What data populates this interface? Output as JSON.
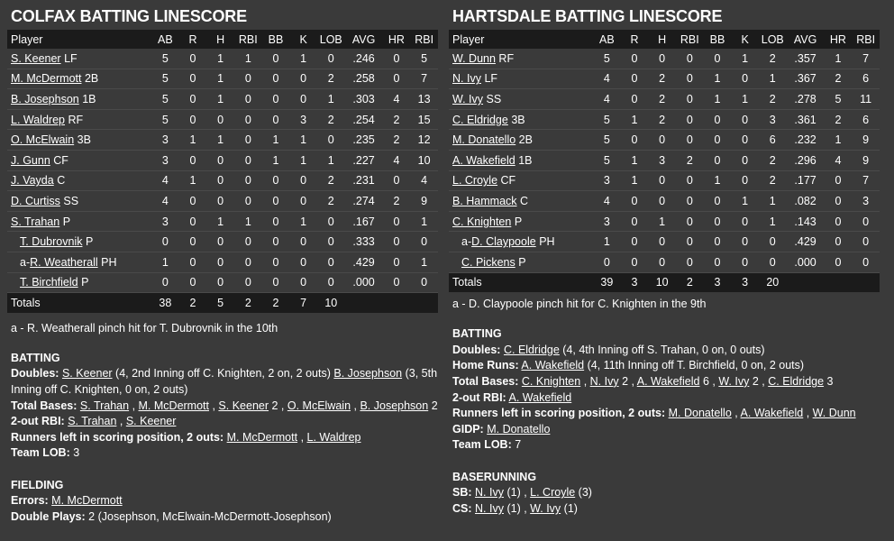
{
  "columns": [
    "Player",
    "AB",
    "R",
    "H",
    "RBI",
    "BB",
    "K",
    "LOB",
    "AVG",
    "HR",
    "RBI"
  ],
  "colfax": {
    "title": "COLFAX BATTING LINESCORE",
    "rows": [
      {
        "name": "S. Keener",
        "pos": "LF",
        "sub": "",
        "stats": [
          "5",
          "0",
          "1",
          "1",
          "0",
          "1",
          "0",
          ".246",
          "0",
          "5"
        ]
      },
      {
        "name": "M. McDermott",
        "pos": "2B",
        "sub": "",
        "stats": [
          "5",
          "0",
          "1",
          "0",
          "0",
          "0",
          "2",
          ".258",
          "0",
          "7"
        ]
      },
      {
        "name": "B. Josephson",
        "pos": "1B",
        "sub": "",
        "stats": [
          "5",
          "0",
          "1",
          "0",
          "0",
          "0",
          "1",
          ".303",
          "4",
          "13"
        ]
      },
      {
        "name": "L. Waldrep",
        "pos": "RF",
        "sub": "",
        "stats": [
          "5",
          "0",
          "0",
          "0",
          "0",
          "3",
          "2",
          ".254",
          "2",
          "15"
        ]
      },
      {
        "name": "O. McElwain",
        "pos": "3B",
        "sub": "",
        "stats": [
          "3",
          "1",
          "1",
          "0",
          "1",
          "1",
          "0",
          ".235",
          "2",
          "12"
        ]
      },
      {
        "name": "J. Gunn",
        "pos": "CF",
        "sub": "",
        "stats": [
          "3",
          "0",
          "0",
          "0",
          "1",
          "1",
          "1",
          ".227",
          "4",
          "10"
        ]
      },
      {
        "name": "J. Vayda",
        "pos": "C",
        "sub": "",
        "stats": [
          "4",
          "1",
          "0",
          "0",
          "0",
          "0",
          "2",
          ".231",
          "0",
          "4"
        ]
      },
      {
        "name": "D. Curtiss",
        "pos": "SS",
        "sub": "",
        "stats": [
          "4",
          "0",
          "0",
          "0",
          "0",
          "0",
          "2",
          ".274",
          "2",
          "9"
        ]
      },
      {
        "name": "S. Trahan",
        "pos": "P",
        "sub": "",
        "stats": [
          "3",
          "0",
          "1",
          "1",
          "0",
          "1",
          "0",
          ".167",
          "0",
          "1"
        ]
      },
      {
        "name": "T. Dubrovnik",
        "pos": "P",
        "sub": "indent",
        "stats": [
          "0",
          "0",
          "0",
          "0",
          "0",
          "0",
          "0",
          ".333",
          "0",
          "0"
        ]
      },
      {
        "name": "R. Weatherall",
        "pos": "PH",
        "sub": "a",
        "stats": [
          "1",
          "0",
          "0",
          "0",
          "0",
          "0",
          "0",
          ".429",
          "0",
          "1"
        ]
      },
      {
        "name": "T. Birchfield",
        "pos": "P",
        "sub": "indent",
        "stats": [
          "0",
          "0",
          "0",
          "0",
          "0",
          "0",
          "0",
          ".000",
          "0",
          "0"
        ]
      }
    ],
    "totals": {
      "label": "Totals",
      "stats": [
        "38",
        "2",
        "5",
        "2",
        "2",
        "7",
        "10",
        "",
        "",
        ""
      ]
    },
    "note": "a - R. Weatherall pinch hit for T. Dubrovnik in the 10th",
    "batting": {
      "heading": "BATTING",
      "doubles_label": "Doubles:",
      "d1": "S. Keener",
      "d1_detail": "(4, 2nd Inning off C. Knighten, 2 on, 2 outs)",
      "d2": "B. Josephson",
      "d2_detail": "(3, 5th Inning off C. Knighten, 0 on, 2 outs)",
      "tb_label": "Total Bases:",
      "tb1": "S. Trahan",
      "tb2": "M. McDermott",
      "tb3": "S. Keener",
      "tb3_n": "2",
      "tb4": "O. McElwain",
      "tb5": "B. Josephson",
      "tb5_n": "2",
      "rbi_label": "2-out RBI:",
      "rbi1": "S. Trahan",
      "rbi2": "S. Keener",
      "risp_label": "Runners left in scoring position, 2 outs:",
      "risp1": "M. McDermott",
      "risp2": "L. Waldrep",
      "lob_label": "Team LOB:",
      "lob": "3"
    },
    "fielding": {
      "heading": "FIELDING",
      "errors_label": "Errors:",
      "errors1": "M. McDermott",
      "dp_label": "Double Plays:",
      "dp": "2 (Josephson, McElwain-McDermott-Josephson)"
    }
  },
  "hartsdale": {
    "title": "HARTSDALE BATTING LINESCORE",
    "rows": [
      {
        "name": "W. Dunn",
        "pos": "RF",
        "sub": "",
        "stats": [
          "5",
          "0",
          "0",
          "0",
          "0",
          "1",
          "2",
          ".357",
          "1",
          "7"
        ]
      },
      {
        "name": "N. Ivy",
        "pos": "LF",
        "sub": "",
        "stats": [
          "4",
          "0",
          "2",
          "0",
          "1",
          "0",
          "1",
          ".367",
          "2",
          "6"
        ]
      },
      {
        "name": "W. Ivy",
        "pos": "SS",
        "sub": "",
        "stats": [
          "4",
          "0",
          "2",
          "0",
          "1",
          "1",
          "2",
          ".278",
          "5",
          "11"
        ]
      },
      {
        "name": "C. Eldridge",
        "pos": "3B",
        "sub": "",
        "stats": [
          "5",
          "1",
          "2",
          "0",
          "0",
          "0",
          "3",
          ".361",
          "2",
          "6"
        ]
      },
      {
        "name": "M. Donatello",
        "pos": "2B",
        "sub": "",
        "stats": [
          "5",
          "0",
          "0",
          "0",
          "0",
          "0",
          "6",
          ".232",
          "1",
          "9"
        ]
      },
      {
        "name": "A. Wakefield",
        "pos": "1B",
        "sub": "",
        "stats": [
          "5",
          "1",
          "3",
          "2",
          "0",
          "0",
          "2",
          ".296",
          "4",
          "9"
        ]
      },
      {
        "name": "L. Croyle",
        "pos": "CF",
        "sub": "",
        "stats": [
          "3",
          "1",
          "0",
          "0",
          "1",
          "0",
          "2",
          ".177",
          "0",
          "7"
        ]
      },
      {
        "name": "B. Hammack",
        "pos": "C",
        "sub": "",
        "stats": [
          "4",
          "0",
          "0",
          "0",
          "0",
          "1",
          "1",
          ".082",
          "0",
          "3"
        ]
      },
      {
        "name": "C. Knighten",
        "pos": "P",
        "sub": "",
        "stats": [
          "3",
          "0",
          "1",
          "0",
          "0",
          "0",
          "1",
          ".143",
          "0",
          "0"
        ]
      },
      {
        "name": "D. Claypoole",
        "pos": "PH",
        "sub": "a",
        "stats": [
          "1",
          "0",
          "0",
          "0",
          "0",
          "0",
          "0",
          ".429",
          "0",
          "0"
        ]
      },
      {
        "name": "C. Pickens",
        "pos": "P",
        "sub": "indent",
        "stats": [
          "0",
          "0",
          "0",
          "0",
          "0",
          "0",
          "0",
          ".000",
          "0",
          "0"
        ]
      }
    ],
    "totals": {
      "label": "Totals",
      "stats": [
        "39",
        "3",
        "10",
        "2",
        "3",
        "3",
        "20",
        "",
        "",
        ""
      ]
    },
    "note": "a - D. Claypoole pinch hit for C. Knighten in the 9th",
    "batting": {
      "heading": "BATTING",
      "doubles_label": "Doubles:",
      "d1": "C. Eldridge",
      "d1_detail": "(4, 4th Inning off S. Trahan, 0 on, 0 outs)",
      "hr_label": "Home Runs:",
      "hr1": "A. Wakefield",
      "hr1_detail": "(4, 11th Inning off T. Birchfield, 0 on, 2 outs)",
      "tb_label": "Total Bases:",
      "tb1": "C. Knighten",
      "tb2": "N. Ivy",
      "tb2_n": "2",
      "tb3": "A. Wakefield",
      "tb3_n": "6",
      "tb4": "W. Ivy",
      "tb4_n": "2",
      "tb5": "C. Eldridge",
      "tb5_n": "3",
      "rbi_label": "2-out RBI:",
      "rbi1": "A. Wakefield",
      "risp_label": "Runners left in scoring position, 2 outs:",
      "risp1": "M. Donatello",
      "risp2": "A. Wakefield",
      "risp3": "W. Dunn",
      "gidp_label": "GIDP:",
      "gidp1": "M. Donatello",
      "lob_label": "Team LOB:",
      "lob": "7"
    },
    "baserunning": {
      "heading": "BASERUNNING",
      "sb_label": "SB:",
      "sb1": "N. Ivy",
      "sb1_n": "(1)",
      "sb2": "L. Croyle",
      "sb2_n": "(3)",
      "cs_label": "CS:",
      "cs1": "N. Ivy",
      "cs1_n": "(1)",
      "cs2": "W. Ivy",
      "cs2_n": "(1)"
    }
  }
}
